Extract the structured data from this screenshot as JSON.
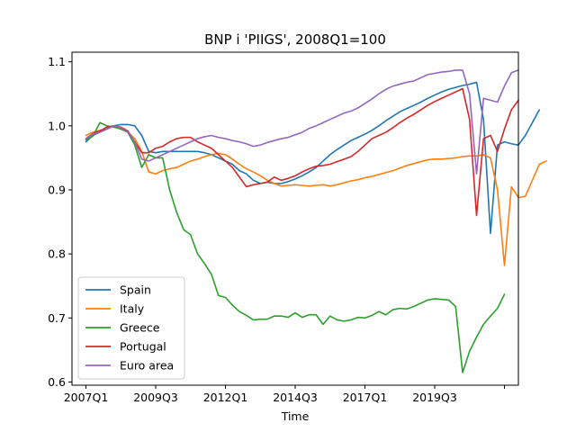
{
  "chart_data": {
    "type": "line",
    "title": "BNP i 'PIIGS', 2008Q1=100",
    "xlabel": "Time",
    "ylabel": "",
    "xlim": [
      "2006Q3",
      "2022Q3"
    ],
    "ylim": [
      0.595,
      1.115
    ],
    "x_ticks": [
      "2007Q1",
      "2009Q3",
      "2012Q1",
      "2014Q3",
      "2017Q1",
      "2019Q3",
      "2022Q1"
    ],
    "x_tick_labels": [
      "2007Q1",
      "2009Q3",
      "2012Q1",
      "2014Q3",
      "2017Q1",
      "2019Q3",
      ""
    ],
    "y_ticks": [
      0.6,
      0.7,
      0.8,
      0.9,
      1.0,
      1.1
    ],
    "y_tick_labels": [
      "0.6",
      "0.7",
      "0.8",
      "0.9",
      "1.0",
      "1.1"
    ],
    "grid": false,
    "legend_position": "lower-left",
    "series": [
      {
        "name": "Spain",
        "color": "#1f77b4",
        "start": "2007Q1",
        "values": [
          0.975,
          0.985,
          0.99,
          0.995,
          1.0,
          1.002,
          1.002,
          1.0,
          0.985,
          0.96,
          0.958,
          0.96,
          0.96,
          0.96,
          0.96,
          0.96,
          0.96,
          0.958,
          0.955,
          0.95,
          0.945,
          0.94,
          0.93,
          0.925,
          0.915,
          0.91,
          0.912,
          0.91,
          0.91,
          0.913,
          0.917,
          0.922,
          0.928,
          0.935,
          0.945,
          0.955,
          0.963,
          0.97,
          0.977,
          0.982,
          0.987,
          0.993,
          1.0,
          1.008,
          1.015,
          1.022,
          1.027,
          1.032,
          1.037,
          1.043,
          1.048,
          1.053,
          1.057,
          1.06,
          1.063,
          1.065,
          1.068,
          1.01,
          0.832,
          0.97,
          0.975,
          0.972,
          0.97,
          0.985,
          1.005,
          1.025
        ]
      },
      {
        "name": "Italy",
        "color": "#ff7f0e",
        "start": "2007Q1",
        "values": [
          0.985,
          0.99,
          0.993,
          0.995,
          1.0,
          0.995,
          0.99,
          0.98,
          0.96,
          0.928,
          0.925,
          0.93,
          0.933,
          0.935,
          0.94,
          0.945,
          0.948,
          0.952,
          0.955,
          0.957,
          0.955,
          0.948,
          0.94,
          0.933,
          0.928,
          0.922,
          0.915,
          0.91,
          0.906,
          0.907,
          0.908,
          0.907,
          0.906,
          0.907,
          0.908,
          0.906,
          0.908,
          0.911,
          0.914,
          0.916,
          0.919,
          0.921,
          0.924,
          0.927,
          0.93,
          0.934,
          0.938,
          0.941,
          0.944,
          0.947,
          0.948,
          0.948,
          0.949,
          0.95,
          0.952,
          0.953,
          0.953,
          0.955,
          0.95,
          0.9,
          0.782,
          0.905,
          0.888,
          0.89,
          0.915,
          0.94,
          0.945
        ]
      },
      {
        "name": "Greece",
        "color": "#2ca02c",
        "start": "2007Q1",
        "values": [
          0.978,
          0.984,
          1.005,
          1.0,
          0.998,
          0.995,
          0.99,
          0.97,
          0.935,
          0.955,
          0.95,
          0.95,
          0.9,
          0.865,
          0.838,
          0.83,
          0.8,
          0.785,
          0.768,
          0.735,
          0.732,
          0.72,
          0.71,
          0.704,
          0.697,
          0.698,
          0.698,
          0.703,
          0.703,
          0.701,
          0.708,
          0.701,
          0.705,
          0.705,
          0.69,
          0.703,
          0.697,
          0.695,
          0.697,
          0.701,
          0.7,
          0.704,
          0.71,
          0.705,
          0.713,
          0.715,
          0.714,
          0.718,
          0.723,
          0.728,
          0.73,
          0.729,
          0.728,
          0.718,
          0.615,
          0.648,
          0.67,
          0.69,
          0.703,
          0.715,
          0.737
        ]
      },
      {
        "name": "Portugal",
        "color": "#d62728",
        "start": "2007Q1",
        "values": [
          0.98,
          0.988,
          0.992,
          0.998,
          1.0,
          0.998,
          0.992,
          0.975,
          0.958,
          0.958,
          0.965,
          0.968,
          0.975,
          0.98,
          0.982,
          0.982,
          0.975,
          0.97,
          0.965,
          0.955,
          0.945,
          0.935,
          0.92,
          0.905,
          0.908,
          0.91,
          0.912,
          0.92,
          0.915,
          0.918,
          0.922,
          0.928,
          0.933,
          0.937,
          0.938,
          0.94,
          0.944,
          0.948,
          0.952,
          0.96,
          0.97,
          0.98,
          0.985,
          0.99,
          0.997,
          1.005,
          1.012,
          1.018,
          1.025,
          1.032,
          1.038,
          1.043,
          1.048,
          1.053,
          1.058,
          1.01,
          0.86,
          0.98,
          0.985,
          0.96,
          0.995,
          1.025,
          1.04
        ]
      },
      {
        "name": "Euro area",
        "color": "#9467bd",
        "start": "2007Q1",
        "values": [
          0.98,
          0.987,
          0.99,
          0.995,
          1.0,
          0.997,
          0.99,
          0.975,
          0.948,
          0.945,
          0.95,
          0.955,
          0.96,
          0.965,
          0.97,
          0.975,
          0.98,
          0.983,
          0.985,
          0.982,
          0.98,
          0.977,
          0.975,
          0.972,
          0.968,
          0.97,
          0.974,
          0.977,
          0.98,
          0.982,
          0.986,
          0.99,
          0.996,
          1.0,
          1.005,
          1.01,
          1.015,
          1.02,
          1.023,
          1.028,
          1.035,
          1.042,
          1.05,
          1.057,
          1.062,
          1.065,
          1.068,
          1.07,
          1.075,
          1.08,
          1.082,
          1.084,
          1.085,
          1.087,
          1.087,
          1.05,
          0.925,
          1.043,
          1.04,
          1.037,
          1.062,
          1.083,
          1.087
        ]
      }
    ]
  }
}
